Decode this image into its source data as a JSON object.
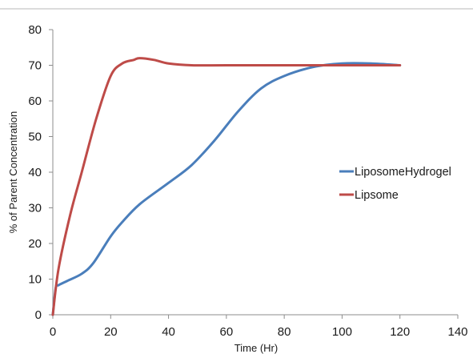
{
  "chart_data": {
    "type": "line",
    "xlabel": "Time (Hr)",
    "ylabel": "% of Parent Concentration",
    "xlim": [
      0,
      140
    ],
    "ylim": [
      0,
      80
    ],
    "xticks": [
      0,
      20,
      40,
      60,
      80,
      100,
      120,
      140
    ],
    "yticks": [
      0,
      10,
      20,
      30,
      40,
      50,
      60,
      70,
      80
    ],
    "grid": false,
    "legend_position": "right",
    "series": [
      {
        "name": "LiposomeHydrogel",
        "color": "#4a7ebb",
        "x": [
          0,
          1,
          2,
          5,
          10,
          14,
          20,
          24,
          30,
          40,
          48,
          56,
          64,
          72,
          80,
          90,
          100,
          110,
          120
        ],
        "y": [
          0,
          7.5,
          8.3,
          9.5,
          11.5,
          14.5,
          22,
          26,
          31,
          37,
          42,
          49,
          57,
          63.5,
          67,
          69.5,
          70.5,
          70.5,
          70
        ]
      },
      {
        "name": "Lipsome",
        "color": "#be4b48",
        "x": [
          0,
          2,
          6,
          10,
          15,
          20,
          24,
          28,
          30,
          35,
          40,
          48,
          60,
          80,
          100,
          120
        ],
        "y": [
          0,
          13,
          28,
          40,
          55,
          67,
          70.5,
          71.5,
          72,
          71.5,
          70.5,
          70,
          70,
          70,
          70,
          70
        ]
      }
    ]
  }
}
